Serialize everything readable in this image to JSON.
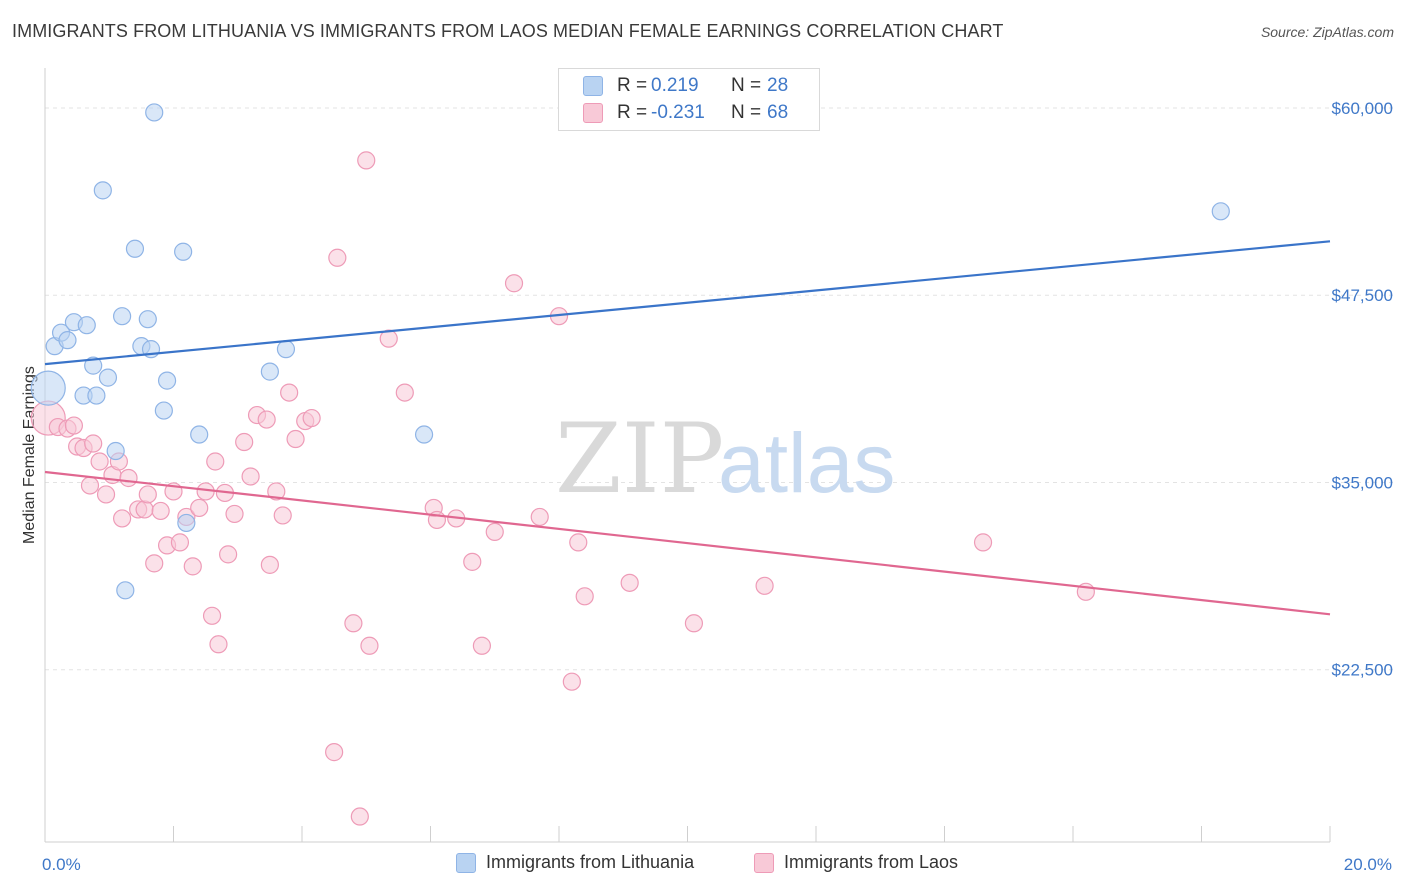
{
  "title": "IMMIGRANTS FROM LITHUANIA VS IMMIGRANTS FROM LAOS MEDIAN FEMALE EARNINGS CORRELATION CHART",
  "source": "Source: ZipAtlas.com",
  "watermark": {
    "zip": "ZIP",
    "atlas": "atlas"
  },
  "colors": {
    "blue": "#3a74c9",
    "blue_fill": "#b9d3f2",
    "blue_stroke": "#8fb4e6",
    "pink": "#e06790",
    "pink_fill": "#f8c9d7",
    "pink_stroke": "#ee9bb7",
    "tick_text": "#3f78c8",
    "grid": "#e3e3e3"
  },
  "legend": {
    "rows": [
      {
        "r_label": "R =",
        "r_value": "0.219",
        "n_label": "N =",
        "n_value": "28"
      },
      {
        "r_label": "R =",
        "r_value": "-0.231",
        "n_label": "N =",
        "n_value": "68"
      }
    ]
  },
  "bottom_legend": [
    "Immigrants from Lithuania",
    "Immigrants from Laos"
  ],
  "chart_data": {
    "type": "scatter",
    "title": "IMMIGRANTS FROM LITHUANIA VS IMMIGRANTS FROM LAOS MEDIAN FEMALE EARNINGS CORRELATION CHART",
    "xlabel": "",
    "ylabel": "Median Female Earnings",
    "xlim": [
      0,
      20
    ],
    "ylim": [
      11000,
      62000
    ],
    "x_tick_labels": [
      "0.0%",
      "20.0%"
    ],
    "y_ticks": [
      22500,
      35000,
      47500,
      60000
    ],
    "y_tick_labels": [
      "$22,500",
      "$35,000",
      "$47,500",
      "$60,000"
    ],
    "series": [
      {
        "name": "Immigrants from Lithuania",
        "color": "blue",
        "trend": {
          "x": [
            0,
            20
          ],
          "y": [
            42900,
            51100
          ]
        },
        "points": [
          {
            "x": 0.05,
            "y": 41300,
            "big": true
          },
          {
            "x": 0.15,
            "y": 44100
          },
          {
            "x": 0.25,
            "y": 45000
          },
          {
            "x": 0.35,
            "y": 44500
          },
          {
            "x": 0.45,
            "y": 45700
          },
          {
            "x": 0.6,
            "y": 40800
          },
          {
            "x": 0.65,
            "y": 45500
          },
          {
            "x": 0.75,
            "y": 42800
          },
          {
            "x": 0.8,
            "y": 40800
          },
          {
            "x": 0.9,
            "y": 54500
          },
          {
            "x": 0.98,
            "y": 42000
          },
          {
            "x": 1.1,
            "y": 37100
          },
          {
            "x": 1.2,
            "y": 46100
          },
          {
            "x": 1.25,
            "y": 27800
          },
          {
            "x": 1.4,
            "y": 50600
          },
          {
            "x": 1.5,
            "y": 44100
          },
          {
            "x": 1.6,
            "y": 45900
          },
          {
            "x": 1.65,
            "y": 43900
          },
          {
            "x": 1.7,
            "y": 59700
          },
          {
            "x": 1.85,
            "y": 39800
          },
          {
            "x": 1.9,
            "y": 41800
          },
          {
            "x": 2.15,
            "y": 50400
          },
          {
            "x": 2.2,
            "y": 32300
          },
          {
            "x": 2.4,
            "y": 38200
          },
          {
            "x": 3.5,
            "y": 42400
          },
          {
            "x": 3.75,
            "y": 43900
          },
          {
            "x": 5.9,
            "y": 38200
          },
          {
            "x": 18.3,
            "y": 53100
          }
        ]
      },
      {
        "name": "Immigrants from Laos",
        "color": "pink",
        "trend": {
          "x": [
            0,
            20
          ],
          "y": [
            35700,
            26200
          ]
        },
        "points": [
          {
            "x": 0.05,
            "y": 39300,
            "big": true
          },
          {
            "x": 0.2,
            "y": 38700
          },
          {
            "x": 0.35,
            "y": 38600
          },
          {
            "x": 0.45,
            "y": 38800
          },
          {
            "x": 0.5,
            "y": 37400
          },
          {
            "x": 0.6,
            "y": 37300
          },
          {
            "x": 0.7,
            "y": 34800
          },
          {
            "x": 0.75,
            "y": 37600
          },
          {
            "x": 0.85,
            "y": 36400
          },
          {
            "x": 0.95,
            "y": 34200
          },
          {
            "x": 1.05,
            "y": 35500
          },
          {
            "x": 1.15,
            "y": 36400
          },
          {
            "x": 1.2,
            "y": 32600
          },
          {
            "x": 1.3,
            "y": 35300
          },
          {
            "x": 1.45,
            "y": 33200
          },
          {
            "x": 1.55,
            "y": 33200
          },
          {
            "x": 1.6,
            "y": 34200
          },
          {
            "x": 1.7,
            "y": 29600
          },
          {
            "x": 1.8,
            "y": 33100
          },
          {
            "x": 1.9,
            "y": 30800
          },
          {
            "x": 2.0,
            "y": 34400
          },
          {
            "x": 2.1,
            "y": 31000
          },
          {
            "x": 2.2,
            "y": 32700
          },
          {
            "x": 2.3,
            "y": 29400
          },
          {
            "x": 2.4,
            "y": 33300
          },
          {
            "x": 2.5,
            "y": 34400
          },
          {
            "x": 2.6,
            "y": 26100
          },
          {
            "x": 2.65,
            "y": 36400
          },
          {
            "x": 2.7,
            "y": 24200
          },
          {
            "x": 2.8,
            "y": 34300
          },
          {
            "x": 2.85,
            "y": 30200
          },
          {
            "x": 2.95,
            "y": 32900
          },
          {
            "x": 3.1,
            "y": 37700
          },
          {
            "x": 3.2,
            "y": 35400
          },
          {
            "x": 3.3,
            "y": 39500
          },
          {
            "x": 3.45,
            "y": 39200
          },
          {
            "x": 3.5,
            "y": 29500
          },
          {
            "x": 3.6,
            "y": 34400
          },
          {
            "x": 3.7,
            "y": 32800
          },
          {
            "x": 3.8,
            "y": 41000
          },
          {
            "x": 3.9,
            "y": 37900
          },
          {
            "x": 4.05,
            "y": 39100
          },
          {
            "x": 4.15,
            "y": 39300
          },
          {
            "x": 4.5,
            "y": 17000
          },
          {
            "x": 4.55,
            "y": 50000
          },
          {
            "x": 4.8,
            "y": 25600
          },
          {
            "x": 4.9,
            "y": 12700
          },
          {
            "x": 5.0,
            "y": 56500
          },
          {
            "x": 5.05,
            "y": 24100
          },
          {
            "x": 5.35,
            "y": 44600
          },
          {
            "x": 5.6,
            "y": 41000
          },
          {
            "x": 6.05,
            "y": 33300
          },
          {
            "x": 6.1,
            "y": 32500
          },
          {
            "x": 6.4,
            "y": 32600
          },
          {
            "x": 6.65,
            "y": 29700
          },
          {
            "x": 6.8,
            "y": 24100
          },
          {
            "x": 7.0,
            "y": 31700
          },
          {
            "x": 7.3,
            "y": 48300
          },
          {
            "x": 7.7,
            "y": 32700
          },
          {
            "x": 8.0,
            "y": 46100
          },
          {
            "x": 8.2,
            "y": 21700
          },
          {
            "x": 8.3,
            "y": 31000
          },
          {
            "x": 8.4,
            "y": 27400
          },
          {
            "x": 9.1,
            "y": 28300
          },
          {
            "x": 10.1,
            "y": 25600
          },
          {
            "x": 11.2,
            "y": 28100
          },
          {
            "x": 14.6,
            "y": 31000
          },
          {
            "x": 16.2,
            "y": 27700
          }
        ]
      }
    ]
  }
}
